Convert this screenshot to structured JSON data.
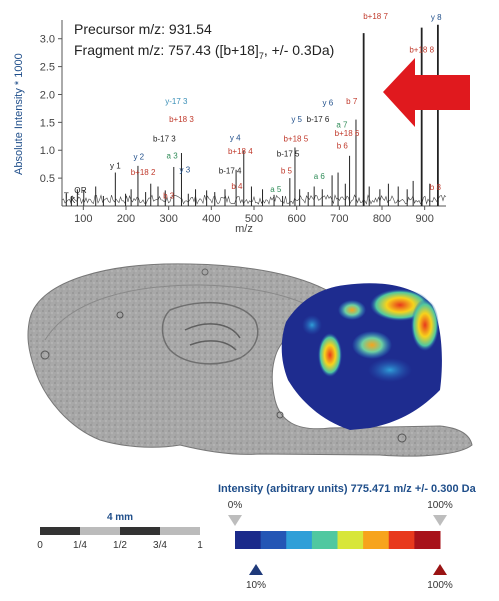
{
  "chart_data": {
    "type": "line",
    "subtype": "mass-spectrum",
    "header": {
      "precursor": "Precursor m/z: 931.54",
      "fragment_prefix": "Fragment m/z: 757.43 ([b+18]",
      "fragment_sub": "7",
      "fragment_suffix": ", +/- 0.3Da)"
    },
    "xlabel": "m/z",
    "ylabel": "Absolute Intensity * 1000",
    "xlim": [
      50,
      950
    ],
    "ylim": [
      0,
      3.3
    ],
    "x_ticks": [
      100,
      200,
      300,
      400,
      500,
      600,
      700,
      800,
      900
    ],
    "y_ticks": [
      0.5,
      1.0,
      1.5,
      2.0,
      2.5,
      3.0
    ],
    "y_tick_labels": [
      "0.5",
      "1.0",
      "1.5",
      "2.0",
      "2.5",
      "3.0"
    ],
    "peaks": [
      {
        "x": 60,
        "y": 0.22
      },
      {
        "x": 72,
        "y": 0.18
      },
      {
        "x": 86,
        "y": 0.3
      },
      {
        "x": 101,
        "y": 0.28
      },
      {
        "x": 129,
        "y": 0.35
      },
      {
        "x": 147,
        "y": 0.18
      },
      {
        "x": 175,
        "y": 0.6
      },
      {
        "x": 199,
        "y": 0.22
      },
      {
        "x": 212,
        "y": 0.3
      },
      {
        "x": 228,
        "y": 0.72
      },
      {
        "x": 246,
        "y": 0.25
      },
      {
        "x": 258,
        "y": 0.4
      },
      {
        "x": 275,
        "y": 0.35
      },
      {
        "x": 292,
        "y": 0.28
      },
      {
        "x": 312,
        "y": 0.7
      },
      {
        "x": 330,
        "y": 0.95
      },
      {
        "x": 346,
        "y": 0.22
      },
      {
        "x": 363,
        "y": 0.3
      },
      {
        "x": 389,
        "y": 0.28
      },
      {
        "x": 408,
        "y": 0.25
      },
      {
        "x": 432,
        "y": 0.3
      },
      {
        "x": 458,
        "y": 0.65
      },
      {
        "x": 476,
        "y": 1.0
      },
      {
        "x": 494,
        "y": 0.35
      },
      {
        "x": 520,
        "y": 0.3
      },
      {
        "x": 547,
        "y": 0.2
      },
      {
        "x": 567,
        "y": 0.18
      },
      {
        "x": 584,
        "y": 0.5
      },
      {
        "x": 596,
        "y": 1.05
      },
      {
        "x": 607,
        "y": 0.3
      },
      {
        "x": 627,
        "y": 0.25
      },
      {
        "x": 641,
        "y": 0.35
      },
      {
        "x": 660,
        "y": 0.3
      },
      {
        "x": 683,
        "y": 0.55
      },
      {
        "x": 697,
        "y": 0.6
      },
      {
        "x": 714,
        "y": 0.4
      },
      {
        "x": 724,
        "y": 0.9
      },
      {
        "x": 739,
        "y": 1.55
      },
      {
        "x": 757,
        "y": 3.1
      },
      {
        "x": 770,
        "y": 0.35
      },
      {
        "x": 795,
        "y": 0.3
      },
      {
        "x": 815,
        "y": 0.4
      },
      {
        "x": 838,
        "y": 0.35
      },
      {
        "x": 859,
        "y": 0.3
      },
      {
        "x": 873,
        "y": 0.45
      },
      {
        "x": 893,
        "y": 3.2
      },
      {
        "x": 912,
        "y": 0.4
      },
      {
        "x": 931,
        "y": 3.25
      }
    ],
    "annotations": [
      {
        "text": "T",
        "x": 60,
        "y": 0.08,
        "color": "#222"
      },
      {
        "text": "K",
        "x": 75,
        "y": 0.0,
        "color": "#222"
      },
      {
        "text": "Q",
        "x": 86,
        "y": 0.18,
        "color": "#222"
      },
      {
        "text": "R",
        "x": 101,
        "y": 0.18,
        "color": "#222"
      },
      {
        "text": "y 1",
        "x": 175,
        "y": 0.62,
        "color": "#222"
      },
      {
        "text": "y 2",
        "x": 230,
        "y": 0.78,
        "color": "#1f4e8a"
      },
      {
        "text": "b+18 2",
        "x": 240,
        "y": 0.5,
        "color": "#c0392b"
      },
      {
        "text": "b 3",
        "x": 300,
        "y": 0.08,
        "color": "#c0392b"
      },
      {
        "text": "a 3",
        "x": 308,
        "y": 0.8,
        "color": "#2e8b57"
      },
      {
        "text": "y 3",
        "x": 338,
        "y": 0.55,
        "color": "#1f4e8a"
      },
      {
        "text": "b-17 3",
        "x": 290,
        "y": 1.1,
        "color": "#222"
      },
      {
        "text": "b+18 3",
        "x": 330,
        "y": 1.45,
        "color": "#c0392b"
      },
      {
        "text": "y-17 3",
        "x": 318,
        "y": 1.78,
        "color": "#3a8fb7"
      },
      {
        "text": "y 4",
        "x": 456,
        "y": 1.12,
        "color": "#1f4e8a"
      },
      {
        "text": "b-17 4",
        "x": 444,
        "y": 0.53,
        "color": "#222"
      },
      {
        "text": "b 4",
        "x": 460,
        "y": 0.25,
        "color": "#c0392b"
      },
      {
        "text": "b+18 4",
        "x": 468,
        "y": 0.88,
        "color": "#c0392b"
      },
      {
        "text": "a 5",
        "x": 551,
        "y": 0.2,
        "color": "#2e8b57"
      },
      {
        "text": "b 5",
        "x": 576,
        "y": 0.53,
        "color": "#c0392b"
      },
      {
        "text": "b-17 5",
        "x": 580,
        "y": 0.83,
        "color": "#222"
      },
      {
        "text": "b+18 5",
        "x": 598,
        "y": 1.1,
        "color": "#c0392b"
      },
      {
        "text": "y 5",
        "x": 600,
        "y": 1.45,
        "color": "#1f4e8a"
      },
      {
        "text": "y 6",
        "x": 673,
        "y": 1.75,
        "color": "#1f4e8a"
      },
      {
        "text": "b-17 6",
        "x": 650,
        "y": 1.45,
        "color": "#222"
      },
      {
        "text": "a 6",
        "x": 653,
        "y": 0.43,
        "color": "#2e8b57"
      },
      {
        "text": "b 6",
        "x": 707,
        "y": 0.98,
        "color": "#c0392b"
      },
      {
        "text": "a 7",
        "x": 706,
        "y": 1.35,
        "color": "#2e8b57"
      },
      {
        "text": "b+18 6",
        "x": 718,
        "y": 1.2,
        "color": "#c0392b"
      },
      {
        "text": "b 7",
        "x": 729,
        "y": 1.78,
        "color": "#c0392b"
      },
      {
        "text": "b+18 7",
        "x": 785,
        "y": 3.3,
        "color": "#c0392b"
      },
      {
        "text": "b+18 8",
        "x": 893,
        "y": 2.7,
        "color": "#c0392b"
      },
      {
        "text": "y 8",
        "x": 927,
        "y": 3.28,
        "color": "#1f4e8a"
      },
      {
        "text": "b 8",
        "x": 925,
        "y": 0.23,
        "color": "#c0392b"
      }
    ],
    "arrow_color": "#e0191e"
  },
  "scale_bar": {
    "length_label": "4 mm",
    "ticks": [
      "0",
      "1/4",
      "1/2",
      "3/4",
      "1"
    ]
  },
  "colorbar": {
    "title": "Intensity (arbitrary units) 775.471 m/z +/- 0.300 Da",
    "top_left_label": "0%",
    "top_right_label": "100%",
    "bottom_left_label": "10%",
    "bottom_right_label": "100%",
    "colors": [
      "#1b2a8a",
      "#2456b5",
      "#2f9fd8",
      "#50c8a0",
      "#d8e63a",
      "#f7a41c",
      "#e8391c",
      "#a8121a"
    ],
    "left_marker_color": "#1f3a7a",
    "right_marker_color": "#9a1414",
    "top_marker_color": "#bdbdbd"
  }
}
